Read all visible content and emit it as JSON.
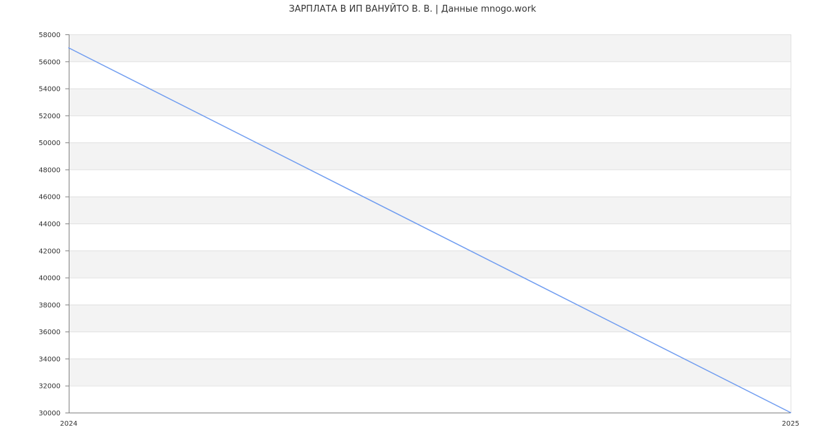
{
  "chart_data": {
    "type": "line",
    "title": "ЗАРПЛАТА В ИП ВАНУЙТО В. В. | Данные mnogo.work",
    "xlabel": "",
    "ylabel": "",
    "x": [
      "2024",
      "2025"
    ],
    "series": [
      {
        "values": [
          57000,
          30000
        ],
        "color": "#6f9cf0"
      }
    ],
    "ylim": [
      30000,
      58000
    ],
    "yticks": [
      30000,
      32000,
      34000,
      36000,
      38000,
      40000,
      42000,
      44000,
      46000,
      48000,
      50000,
      52000,
      54000,
      56000,
      58000
    ],
    "grid": true,
    "band_colors": [
      "#f3f3f3",
      "#ffffff"
    ],
    "gridline_color": "#e0e0e0",
    "axis_color": "#808080"
  }
}
